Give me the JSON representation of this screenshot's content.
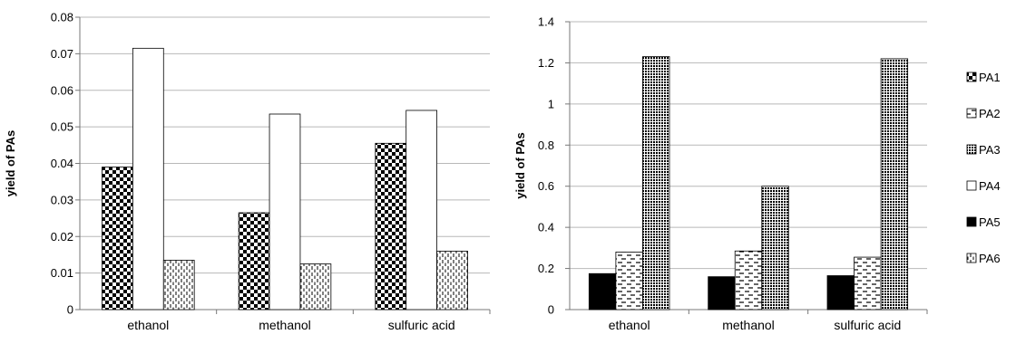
{
  "chart_data": [
    {
      "type": "bar",
      "categories": [
        "ethanol",
        "methanol",
        "sulfuric acid"
      ],
      "ylabel": "yield of PAs",
      "xlabel": "",
      "ylim": [
        0,
        0.08
      ],
      "yticks": [
        "0",
        "0.01",
        "0.02",
        "0.03",
        "0.04",
        "0.05",
        "0.06",
        "0.07",
        "0.08"
      ],
      "grid": true,
      "series": [
        {
          "name": "PA1",
          "values": [
            0.039,
            0.0265,
            0.0455
          ],
          "pattern": "checker"
        },
        {
          "name": "PA4",
          "values": [
            0.0715,
            0.0535,
            0.0545
          ],
          "pattern": "white"
        },
        {
          "name": "PA6",
          "values": [
            0.0135,
            0.0125,
            0.016
          ],
          "pattern": "dashes"
        }
      ]
    },
    {
      "type": "bar",
      "categories": [
        "ethanol",
        "methanol",
        "sulfuric acid"
      ],
      "ylabel": "yield of PAs",
      "xlabel": "",
      "ylim": [
        0,
        1.4
      ],
      "yticks": [
        "0",
        "0.2",
        "0.4",
        "0.6",
        "0.8",
        "1",
        "1.2",
        "1.4"
      ],
      "grid": true,
      "legend": "right",
      "series": [
        {
          "name": "PA5",
          "values": [
            0.175,
            0.16,
            0.165
          ],
          "pattern": "black"
        },
        {
          "name": "PA2",
          "values": [
            0.28,
            0.285,
            0.255
          ],
          "pattern": "hdash"
        },
        {
          "name": "PA3",
          "values": [
            1.23,
            0.6,
            1.22
          ],
          "pattern": "dots"
        }
      ],
      "legend_entries": [
        {
          "name": "PA1",
          "pattern": "checker"
        },
        {
          "name": "PA2",
          "pattern": "hdash"
        },
        {
          "name": "PA3",
          "pattern": "dots"
        },
        {
          "name": "PA4",
          "pattern": "white"
        },
        {
          "name": "PA5",
          "pattern": "black"
        },
        {
          "name": "PA6",
          "pattern": "dashes"
        }
      ]
    }
  ]
}
